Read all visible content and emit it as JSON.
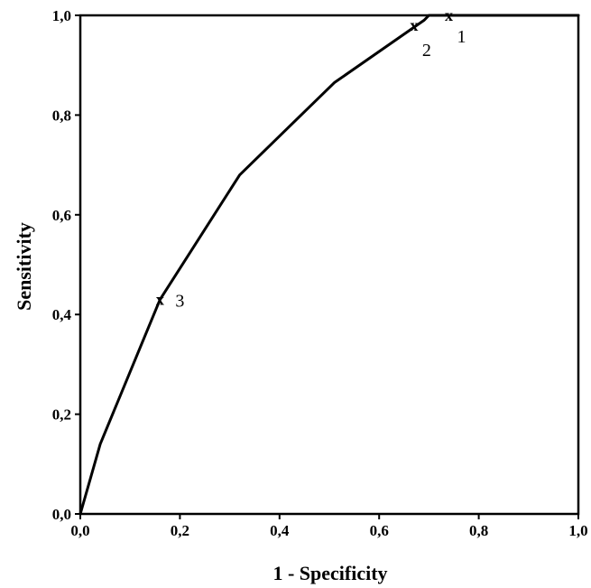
{
  "chart_data": {
    "type": "line",
    "title": "",
    "xlabel": "1 - Specificity",
    "ylabel": "Sensitivity",
    "xlim": [
      0,
      1
    ],
    "ylim": [
      0,
      1
    ],
    "grid": false,
    "x_ticks": [
      0,
      0.2,
      0.4,
      0.6,
      0.8,
      1.0
    ],
    "y_ticks": [
      0,
      0.2,
      0.4,
      0.6,
      0.8,
      1.0
    ],
    "x_tick_labels": [
      "0,0",
      "0,2",
      "0,4",
      "0,6",
      "0,8",
      "1,0"
    ],
    "y_tick_labels": [
      "0,0",
      "0,2",
      "0,4",
      "0,6",
      "0,8",
      "1,0"
    ],
    "series": [
      {
        "x": [
          0.0,
          0.04,
          0.16,
          0.32,
          0.51,
          0.69,
          0.7,
          1.0
        ],
        "y": [
          0.0,
          0.14,
          0.43,
          0.68,
          0.865,
          0.99,
          1.0,
          1.0
        ]
      }
    ],
    "markers": [
      {
        "x": 0.74,
        "y": 1.0,
        "symbol": "x",
        "label": "1"
      },
      {
        "x": 0.67,
        "y": 0.98,
        "symbol": "x",
        "label": "2"
      },
      {
        "x": 0.16,
        "y": 0.43,
        "symbol": "x",
        "label": "3"
      }
    ],
    "colors": {
      "line": "#000000",
      "axes": "#000000",
      "background": "#ffffff"
    }
  }
}
